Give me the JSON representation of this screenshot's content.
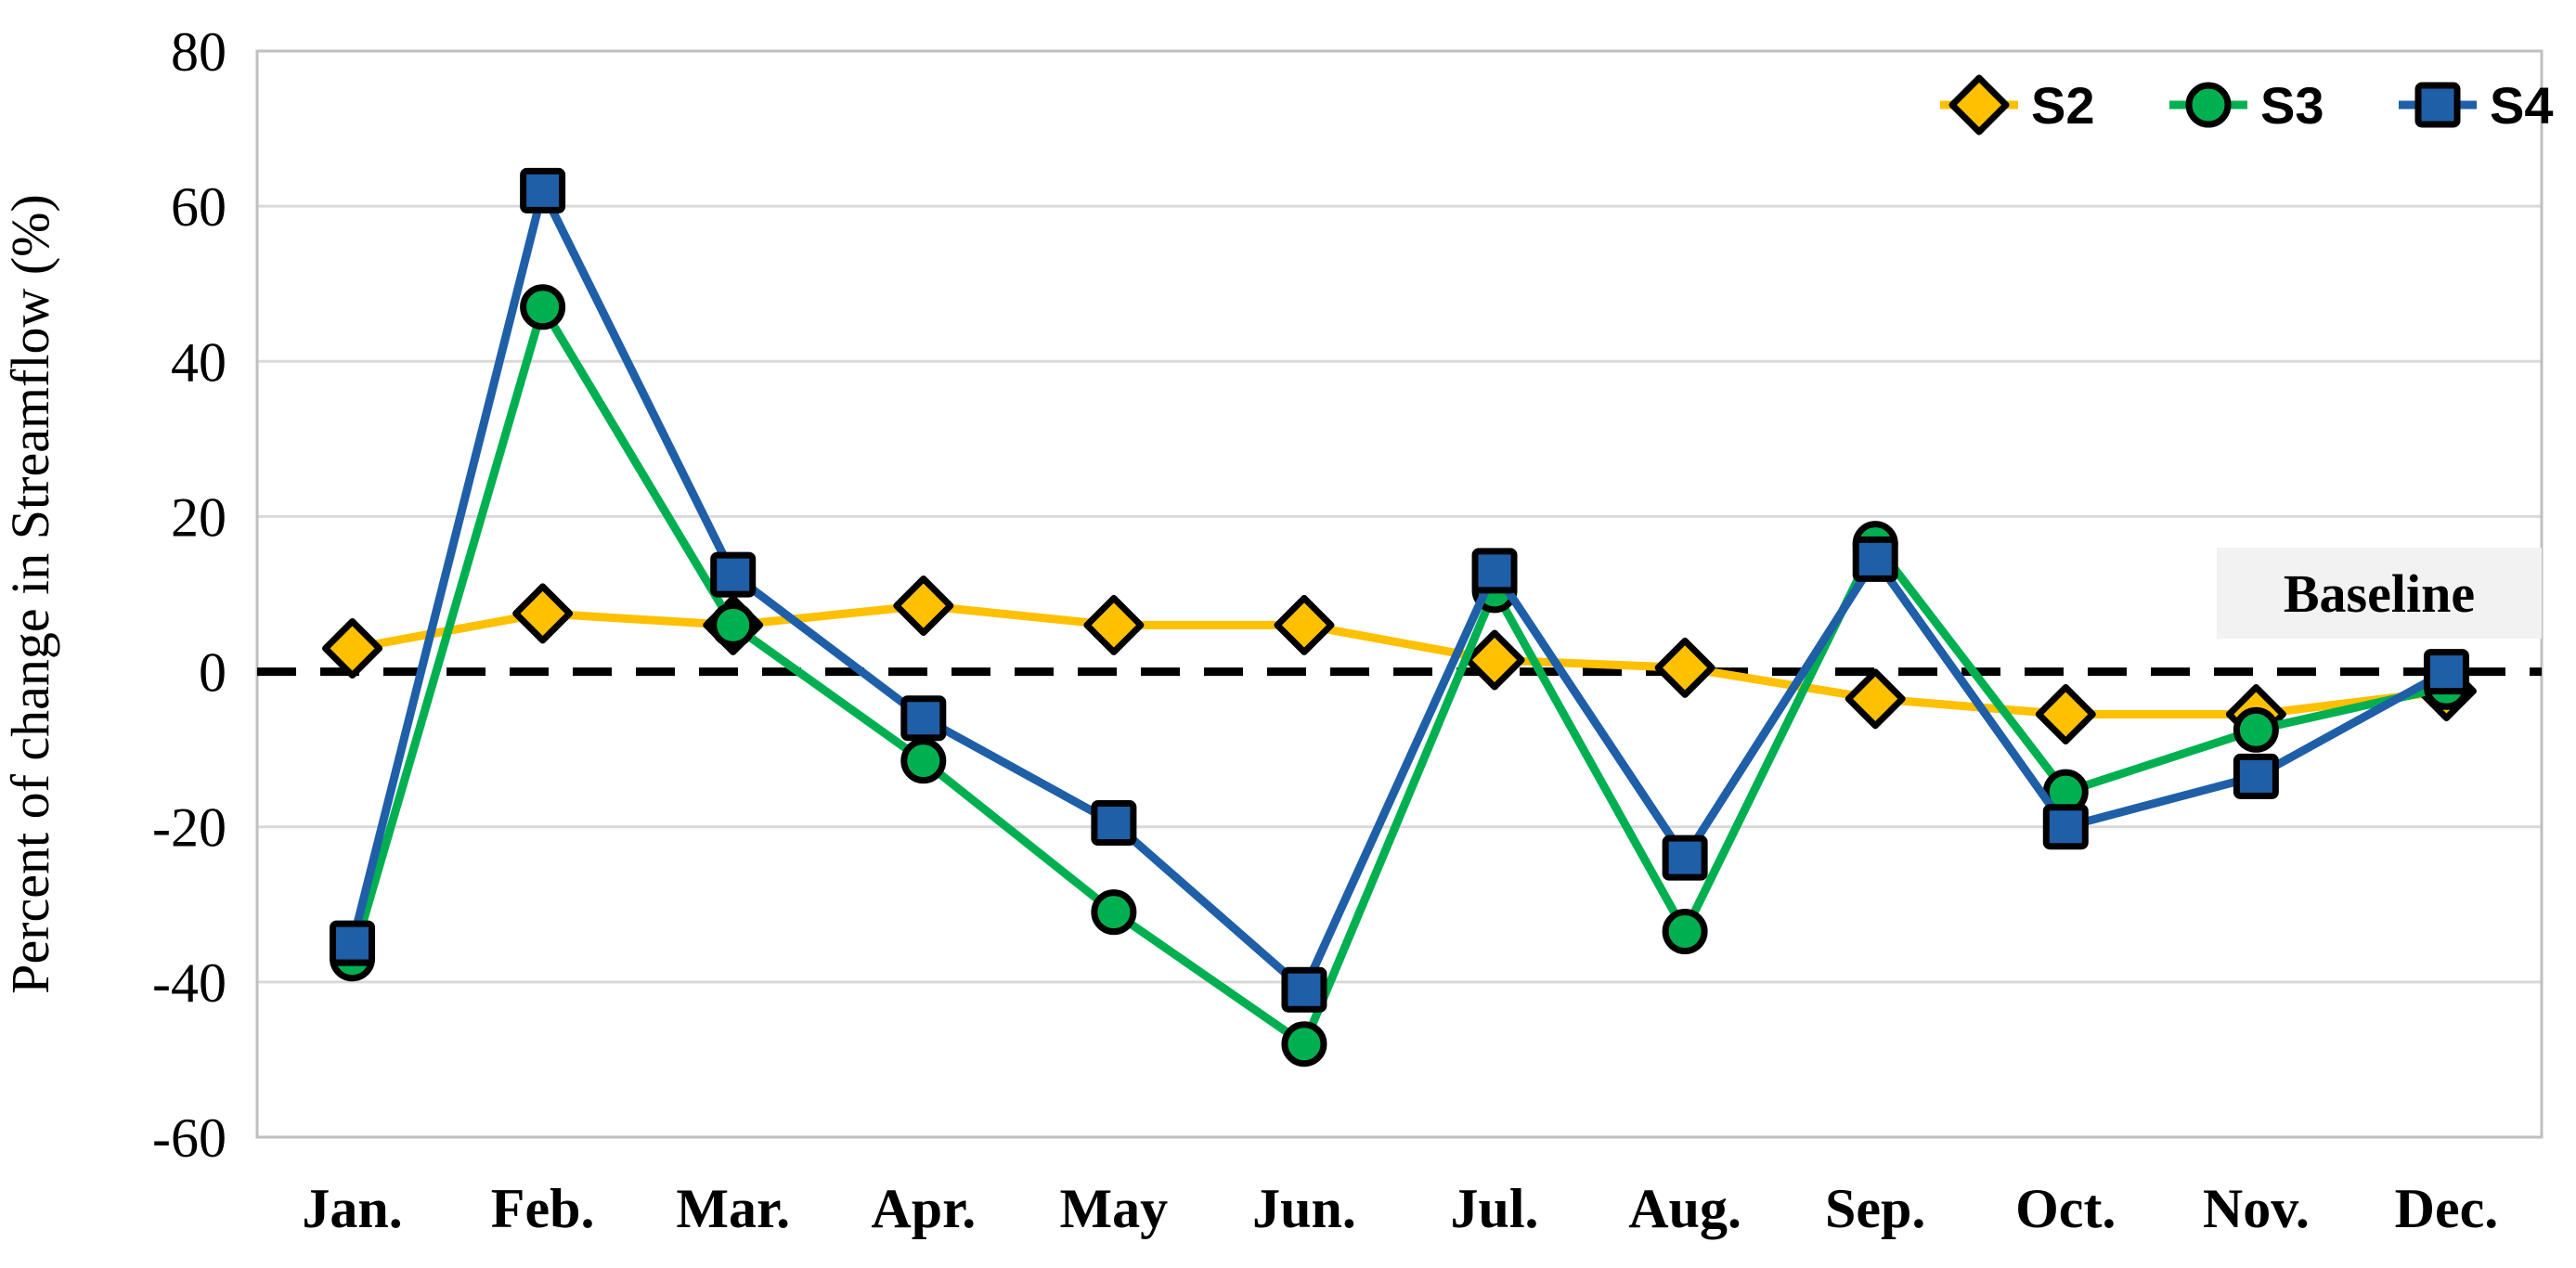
{
  "figure": {
    "background": "#ffffff",
    "plot_border_color": "#bfbfbf",
    "gridline_color": "#d9d9d9",
    "baseline_line_color": "#000000",
    "baseline_label_bg": "#f2f2f2",
    "text_color": "#000000"
  },
  "chart_data": {
    "type": "line",
    "title": "",
    "xlabel": "",
    "ylabel": "Percent of change  in Streamflow (%)",
    "categories": [
      "Jan.",
      "Feb.",
      "Mar.",
      "Apr.",
      "May",
      "Jun.",
      "Jul.",
      "Aug.",
      "Sep.",
      "Oct.",
      "Nov.",
      "Dec."
    ],
    "series": [
      {
        "name": "S2",
        "color": "#FFC000",
        "marker": "diamond",
        "values": [
          3,
          7.5,
          6,
          8.5,
          6,
          6,
          1.5,
          0.5,
          -3.5,
          -5.5,
          -5.5,
          -2.5
        ]
      },
      {
        "name": "S3",
        "color": "#00B050",
        "marker": "circle",
        "values": [
          -37,
          47,
          6,
          -11.5,
          -31,
          -48,
          10.5,
          -33.5,
          16.5,
          -15.5,
          -7.5,
          -2
        ]
      },
      {
        "name": "S4",
        "color": "#1F5FA8",
        "marker": "square",
        "values": [
          -35,
          62,
          12.5,
          -6,
          -19.5,
          -41,
          13,
          -24,
          14.5,
          -20,
          -13.5,
          0
        ]
      }
    ],
    "ylim": [
      -60,
      80
    ],
    "yticks": [
      80,
      60,
      40,
      20,
      0,
      -20,
      -40,
      -60
    ],
    "grid": true,
    "legend_position": "top-right",
    "legend_labels": [
      "S2",
      "S3",
      "S4"
    ],
    "baseline": {
      "value": 0,
      "label": "Baseline",
      "style": "dashed"
    }
  }
}
